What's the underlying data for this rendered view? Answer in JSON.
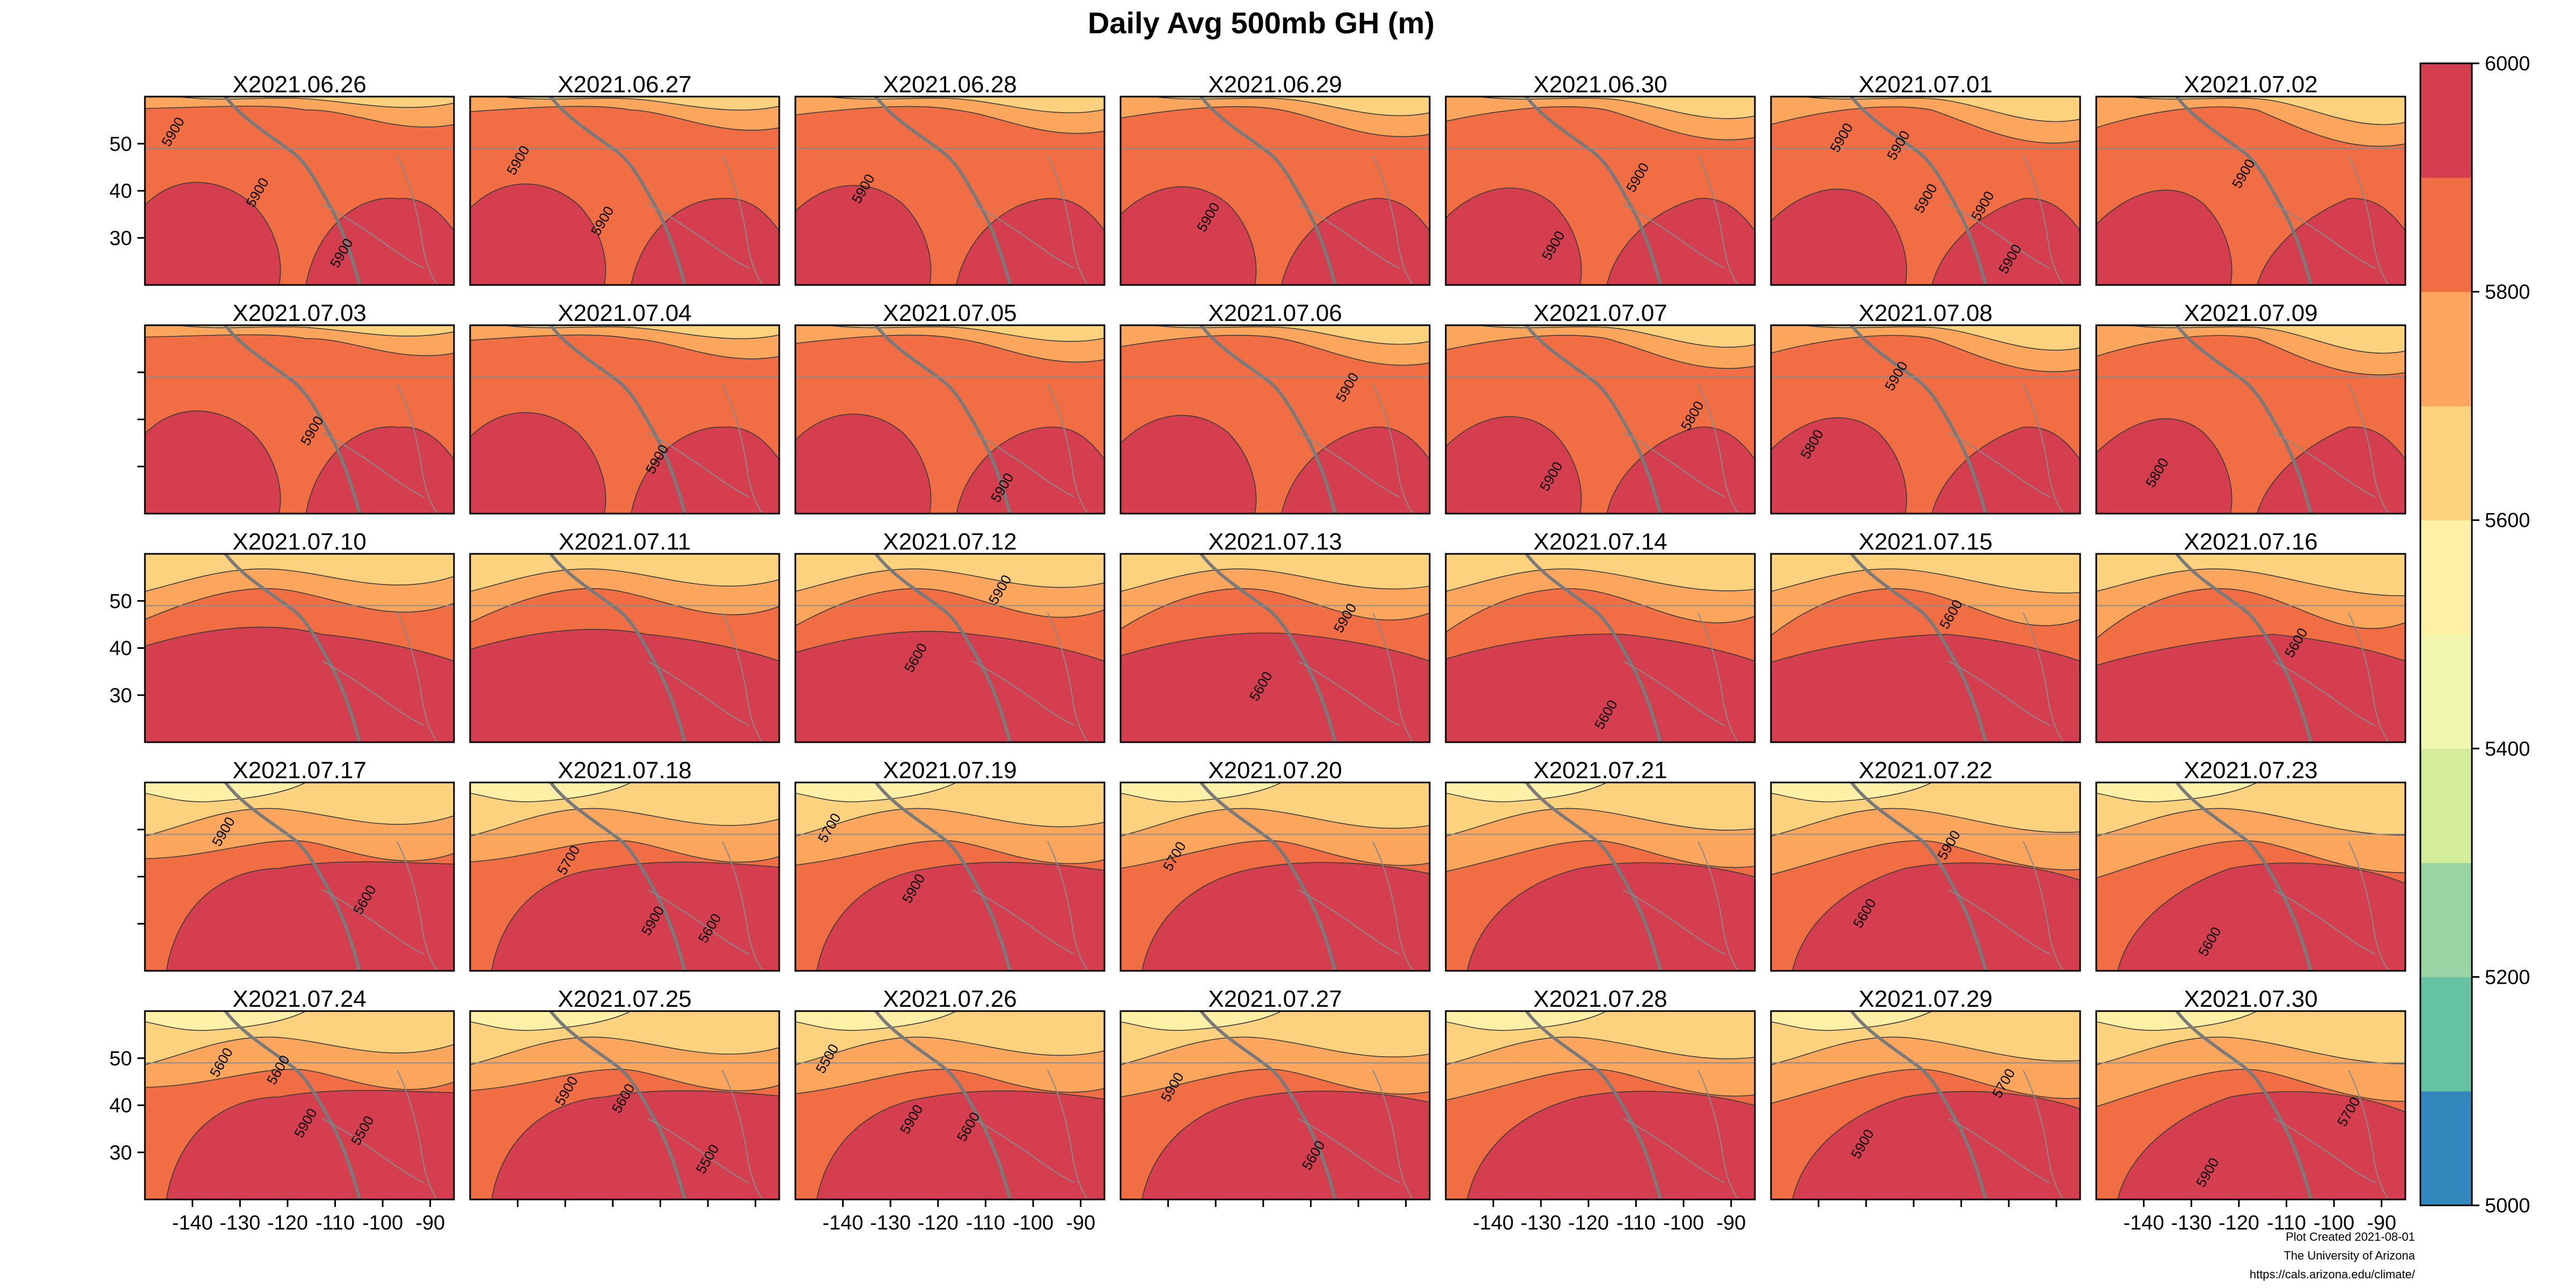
{
  "chart_data": {
    "type": "heatmap",
    "title": "Daily Avg 500mb GH (m)",
    "grid": false,
    "legend": "right",
    "layout": {
      "rows": 5,
      "cols": 7
    },
    "panels": [
      "X2021.06.26",
      "X2021.06.27",
      "X2021.06.28",
      "X2021.06.29",
      "X2021.06.30",
      "X2021.07.01",
      "X2021.07.02",
      "X2021.07.03",
      "X2021.07.04",
      "X2021.07.05",
      "X2021.07.06",
      "X2021.07.07",
      "X2021.07.08",
      "X2021.07.09",
      "X2021.07.10",
      "X2021.07.11",
      "X2021.07.12",
      "X2021.07.13",
      "X2021.07.14",
      "X2021.07.15",
      "X2021.07.16",
      "X2021.07.17",
      "X2021.07.18",
      "X2021.07.19",
      "X2021.07.20",
      "X2021.07.21",
      "X2021.07.22",
      "X2021.07.23",
      "X2021.07.24",
      "X2021.07.25",
      "X2021.07.26",
      "X2021.07.27",
      "X2021.07.28",
      "X2021.07.29",
      "X2021.07.30"
    ],
    "x_ticks": [
      -140,
      -130,
      -120,
      -110,
      -100,
      -90
    ],
    "y_ticks": [
      30,
      40,
      50
    ],
    "xlim": [
      -150,
      -85
    ],
    "ylim": [
      20,
      60
    ],
    "colorbar": {
      "range": [
        5000,
        6000
      ],
      "tick_labels": [
        5000,
        5200,
        5400,
        5600,
        5800,
        6000
      ],
      "colors": [
        "#3288bd",
        "#66c2a5",
        "#99d5a4",
        "#d4ed9b",
        "#f2f7b0",
        "#fff0a8",
        "#fdd27f",
        "#fca55d",
        "#f16d43",
        "#d53e4f"
      ]
    },
    "contour_levels": [
      5500,
      5600,
      5700,
      5800,
      5900
    ],
    "contour_labels": [
      [
        "5900",
        "5900",
        "5900"
      ],
      [
        "5900",
        "5900"
      ],
      [
        "5900"
      ],
      [
        "5900"
      ],
      [
        "5900",
        "5900"
      ],
      [
        "5900",
        "5900",
        "5900",
        "5900",
        "5900"
      ],
      [
        "5900"
      ],
      [
        "5900"
      ],
      [
        "5900"
      ],
      [
        "5900"
      ],
      [
        "5900"
      ],
      [
        "5800",
        "5900"
      ],
      [
        "5800",
        "5900"
      ],
      [
        "5800"
      ],
      [],
      [],
      [
        "5600",
        "5900"
      ],
      [
        "5600",
        "5900"
      ],
      [
        "5600"
      ],
      [
        "5600"
      ],
      [
        "5600"
      ],
      [
        "5600",
        "5900"
      ],
      [
        "5600",
        "5700",
        "5900"
      ],
      [
        "5700",
        "5900"
      ],
      [
        "5700"
      ],
      [],
      [
        "5600",
        "5900"
      ],
      [
        "5600"
      ],
      [
        "5600",
        "5500",
        "5600",
        "5900"
      ],
      [
        "5600",
        "5500",
        "5900"
      ],
      [
        "5600",
        "5500",
        "5900"
      ],
      [
        "5600",
        "5900"
      ],
      [],
      [
        "5700",
        "5900"
      ],
      [
        "5700",
        "5900"
      ]
    ]
  },
  "credits": [
    "Plot Created 2021-08-01",
    "The University of Arizona",
    "https://cals.arizona.edu/climate/"
  ]
}
